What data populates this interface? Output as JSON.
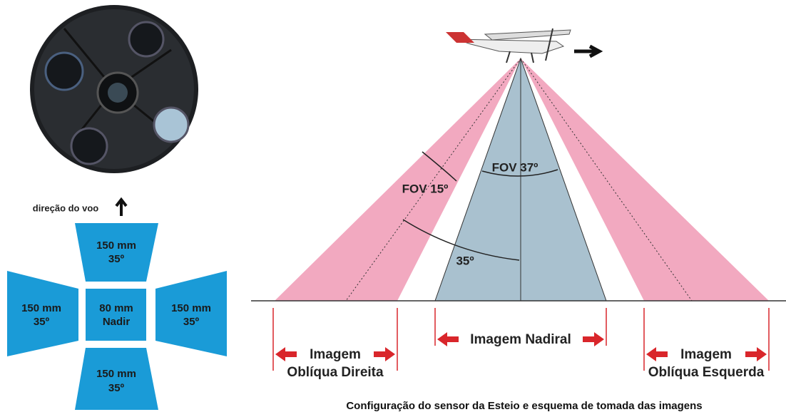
{
  "flight_direction": "direção do voo",
  "sensor_boxes": {
    "top": {
      "focal": "150 mm",
      "angle": "35º"
    },
    "left": {
      "focal": "150 mm",
      "angle": "35º"
    },
    "center": {
      "focal": "80 mm",
      "label": "Nadir"
    },
    "right": {
      "focal": "150 mm",
      "angle": "35º"
    },
    "bottom": {
      "focal": "150 mm",
      "angle": "35º"
    }
  },
  "angles": {
    "fov_oblique": "FOV 15º",
    "fov_nadir": "FOV 37º",
    "tilt": "35º"
  },
  "footprints": {
    "right_oblique": {
      "line1": "Imagem",
      "line2": "Oblíqua Direita"
    },
    "nadir": {
      "line1": "Imagem Nadiral"
    },
    "left_oblique": {
      "line1": "Imagem",
      "line2": "Oblíqua Esquerda"
    }
  },
  "caption": "Configuração do sensor da Esteio e esquema de tomada das imagens"
}
